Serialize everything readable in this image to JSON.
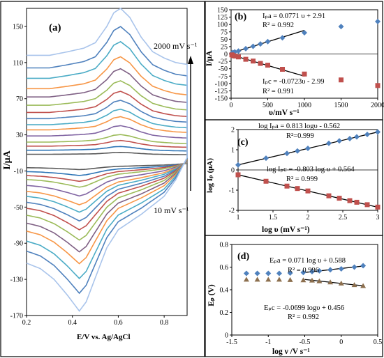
{
  "panels": {
    "a": {
      "panel_label": "(a)",
      "xlabel": "E/V vs. Ag/AgCl",
      "ylabel": "I/μA",
      "annotation_top": "2000 mV s⁻¹",
      "annotation_bottom": "10 mV s⁻¹"
    },
    "b": {
      "panel_label": "(b)",
      "xlabel": "υ/mV s⁻¹",
      "ylabel": "I/μA",
      "eq_anodic": "Iₚa = 0.0771 υ + 2.91",
      "r2_anodic": "R² = 0.992",
      "eq_cathodic": "Iₚc = -0.0723υ - 2.99",
      "r2_cathodic": "R² = 0.991"
    },
    "c": {
      "panel_label": "(c)",
      "xlabel": "log υ (mV s⁻¹)",
      "ylabel": "log Iₚ (μA)",
      "eq_anodic": "log Iₚa = 0.813 logυ - 0.562",
      "r2_anodic": "R²=0.999",
      "eq_cathodic": "log Iₚc = -0.803 log υ + 0.564",
      "r2_cathodic": "R² = 0.999"
    },
    "d": {
      "panel_label": "(d)",
      "xlabel": "log ν /V s⁻¹",
      "ylabel": "Eₚ (V)",
      "eq_anodic": "Eₚa = 0.071 log υ + 0.588",
      "r2_anodic": "R² = 0.996",
      "eq_cathodic": "Eₚc = -0.0699 logυ + 0.456",
      "r2_cathodic": "R² = 0.992"
    }
  },
  "chart_data": [
    {
      "id": "a",
      "type": "line",
      "xlim": [
        0.2,
        0.9
      ],
      "ylim": [
        -170,
        170
      ],
      "xticks": [
        0.2,
        0.4,
        0.6,
        0.8
      ],
      "yticks": [
        -170,
        -130,
        -90,
        -50,
        -10,
        30,
        70,
        110,
        150
      ],
      "ytick_labels": [
        "-170",
        "-130",
        "-90",
        "-50",
        "-10",
        "30",
        "70",
        "110",
        "150"
      ],
      "grid": false,
      "curve_colors": [
        "#5a5a5a",
        "#2e75b6",
        "#c0504d",
        "#9bbb59",
        "#8064a2",
        "#f79646",
        "#4bacc6",
        "#4f81bd",
        "#c0504d",
        "#9bbb59",
        "#7f6084",
        "#f79646",
        "#4bacc6",
        "#4f81bd",
        "#a9c4eb"
      ],
      "scale_factors": [
        0.04,
        0.08,
        0.12,
        0.16,
        0.22,
        0.28,
        0.33,
        0.39,
        0.45,
        0.52,
        0.6,
        0.68,
        0.78,
        0.88,
        1.0
      ],
      "envelope_outermost_scan": {
        "forward_E": [
          0.2,
          0.3,
          0.38,
          0.45,
          0.5,
          0.55,
          0.58,
          0.61,
          0.65,
          0.7,
          0.75,
          0.8,
          0.85,
          0.9
        ],
        "forward_I": [
          118,
          118,
          122,
          126,
          132,
          150,
          165,
          170,
          160,
          138,
          122,
          115,
          110,
          108
        ],
        "reverse_E": [
          0.9,
          0.85,
          0.8,
          0.7,
          0.6,
          0.55,
          0.5,
          0.46,
          0.43,
          0.38,
          0.32,
          0.26,
          0.2
        ],
        "reverse_I": [
          5,
          -20,
          -38,
          -58,
          -75,
          -95,
          -128,
          -155,
          -165,
          -148,
          -130,
          -118,
          -112
        ]
      }
    },
    {
      "id": "b",
      "type": "scatter",
      "xlim": [
        0,
        2000
      ],
      "ylim": [
        -150,
        150
      ],
      "xticks": [
        0,
        500,
        1000,
        1500,
        2000
      ],
      "yticks": [
        -150,
        -125,
        -100,
        -75,
        -50,
        -25,
        0,
        25,
        50,
        75,
        100,
        125,
        150
      ],
      "series": [
        {
          "name": "Iₚa",
          "color": "#4f81bd",
          "marker": "diamond",
          "x": [
            10,
            25,
            50,
            100,
            200,
            300,
            400,
            500,
            700,
            1000,
            1500,
            2000
          ],
          "y": [
            3,
            5,
            7,
            10,
            18,
            26,
            34,
            42,
            55,
            72,
            93,
            110
          ]
        },
        {
          "name": "Iₚc",
          "color": "#c0504d",
          "marker": "square",
          "x": [
            10,
            25,
            50,
            100,
            200,
            300,
            400,
            500,
            700,
            1000,
            1500,
            2000
          ],
          "y": [
            -3,
            -5,
            -7,
            -10,
            -18,
            -24,
            -32,
            -38,
            -52,
            -68,
            -88,
            -107
          ]
        }
      ],
      "fits": [
        {
          "slope": 0.0771,
          "intercept": 2.91,
          "x": [
            0,
            1000
          ]
        },
        {
          "slope": -0.0723,
          "intercept": -2.99,
          "x": [
            0,
            1000
          ]
        }
      ]
    },
    {
      "id": "c",
      "type": "scatter",
      "xlim": [
        1,
        3
      ],
      "ylim": [
        -2,
        2
      ],
      "xticks": [
        1,
        1.5,
        2,
        2.5,
        3
      ],
      "yticks": [
        -2,
        -1,
        0,
        1,
        2
      ],
      "series": [
        {
          "name": "log Iₚa",
          "color": "#4f81bd",
          "marker": "diamond",
          "x": [
            1,
            1.4,
            1.7,
            1.85,
            2,
            2.3,
            2.45,
            2.6,
            2.7,
            2.85,
            3
          ],
          "y": [
            0.25,
            0.58,
            0.82,
            0.94,
            1.07,
            1.32,
            1.44,
            1.55,
            1.64,
            1.76,
            1.88
          ]
        },
        {
          "name": "log Iₚc",
          "color": "#c0504d",
          "marker": "square",
          "x": [
            1,
            1.4,
            1.7,
            1.85,
            2,
            2.3,
            2.45,
            2.6,
            2.7,
            2.85,
            3
          ],
          "y": [
            -0.24,
            -0.56,
            -0.8,
            -0.92,
            -1.04,
            -1.28,
            -1.4,
            -1.52,
            -1.6,
            -1.72,
            -1.84
          ]
        }
      ],
      "fits": [
        {
          "slope": 0.813,
          "intercept": -0.562,
          "x": [
            1,
            3
          ]
        },
        {
          "slope": -0.803,
          "intercept": 0.564,
          "x": [
            1,
            3
          ]
        }
      ]
    },
    {
      "id": "d",
      "type": "scatter",
      "xlim": [
        -1.5,
        0.5
      ],
      "ylim": [
        0,
        0.8
      ],
      "xticks": [
        -1.5,
        -1,
        -0.5,
        0,
        0.5
      ],
      "yticks": [
        0,
        0.2,
        0.4,
        0.6,
        0.8
      ],
      "series": [
        {
          "name": "Eₚa",
          "color": "#4f81bd",
          "marker": "diamond",
          "x": [
            -1.3,
            -1.15,
            -1.0,
            -0.85,
            -0.7,
            -0.52,
            -0.4,
            -0.3,
            -0.15,
            0,
            0.18,
            0.3
          ],
          "y": [
            0.545,
            0.545,
            0.545,
            0.545,
            0.548,
            0.552,
            0.56,
            0.567,
            0.576,
            0.585,
            0.6,
            0.612
          ]
        },
        {
          "name": "Eₚc",
          "color": "#8c6f4e",
          "marker": "triangle",
          "x": [
            -1.3,
            -1.15,
            -1.0,
            -0.85,
            -0.7,
            -0.52,
            -0.4,
            -0.3,
            -0.15,
            0,
            0.18,
            0.3
          ],
          "y": [
            0.49,
            0.49,
            0.49,
            0.49,
            0.487,
            0.485,
            0.482,
            0.476,
            0.466,
            0.456,
            0.442,
            0.434
          ]
        }
      ],
      "fits": [
        {
          "slope": 0.071,
          "intercept": 0.588,
          "x": [
            -0.5,
            0.3
          ]
        },
        {
          "slope": -0.0699,
          "intercept": 0.456,
          "x": [
            -0.5,
            0.3
          ]
        }
      ]
    }
  ]
}
